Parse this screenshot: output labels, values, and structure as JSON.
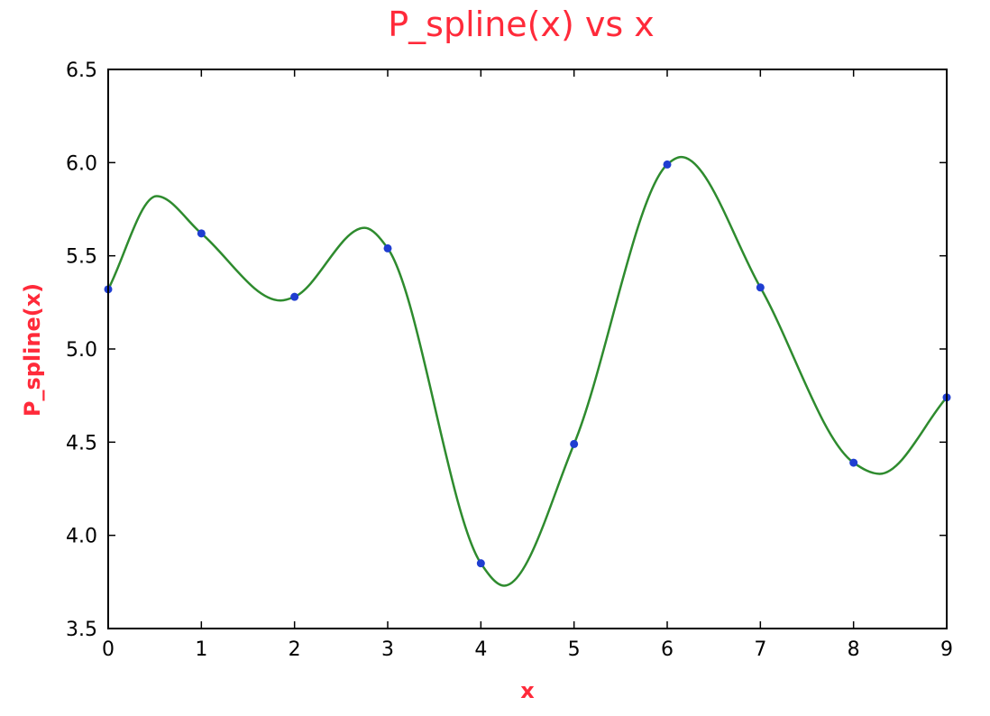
{
  "chart_data": {
    "type": "line",
    "title": "P_spline(x) vs x",
    "xlabel": "x",
    "ylabel": "P_spline(x)",
    "xlim": [
      0,
      9
    ],
    "ylim": [
      3.5,
      6.5
    ],
    "xticks": [
      "0",
      "1",
      "2",
      "3",
      "4",
      "5",
      "6",
      "7",
      "8",
      "9"
    ],
    "yticks": [
      "3.5",
      "4.0",
      "4.5",
      "5.0",
      "5.5",
      "6.0",
      "6.5"
    ],
    "grid": false,
    "legend": "none",
    "points": {
      "x": [
        0,
        1,
        2,
        3,
        4,
        5,
        6,
        7,
        8,
        9
      ],
      "y": [
        5.32,
        5.62,
        5.28,
        5.54,
        3.85,
        4.49,
        5.99,
        5.33,
        4.39,
        4.74
      ]
    },
    "spline_extrema": [
      {
        "x": 0.52,
        "y": 5.82
      },
      {
        "x": 1.85,
        "y": 5.26
      },
      {
        "x": 2.75,
        "y": 5.65
      },
      {
        "x": 4.25,
        "y": 3.73
      },
      {
        "x": 6.15,
        "y": 6.03
      },
      {
        "x": 8.28,
        "y": 4.33
      }
    ],
    "colors": {
      "title": "#ff2a3a",
      "labels": "#ff2a3a",
      "curve": "#2e8b2e",
      "points": "#1f3ed1"
    }
  }
}
